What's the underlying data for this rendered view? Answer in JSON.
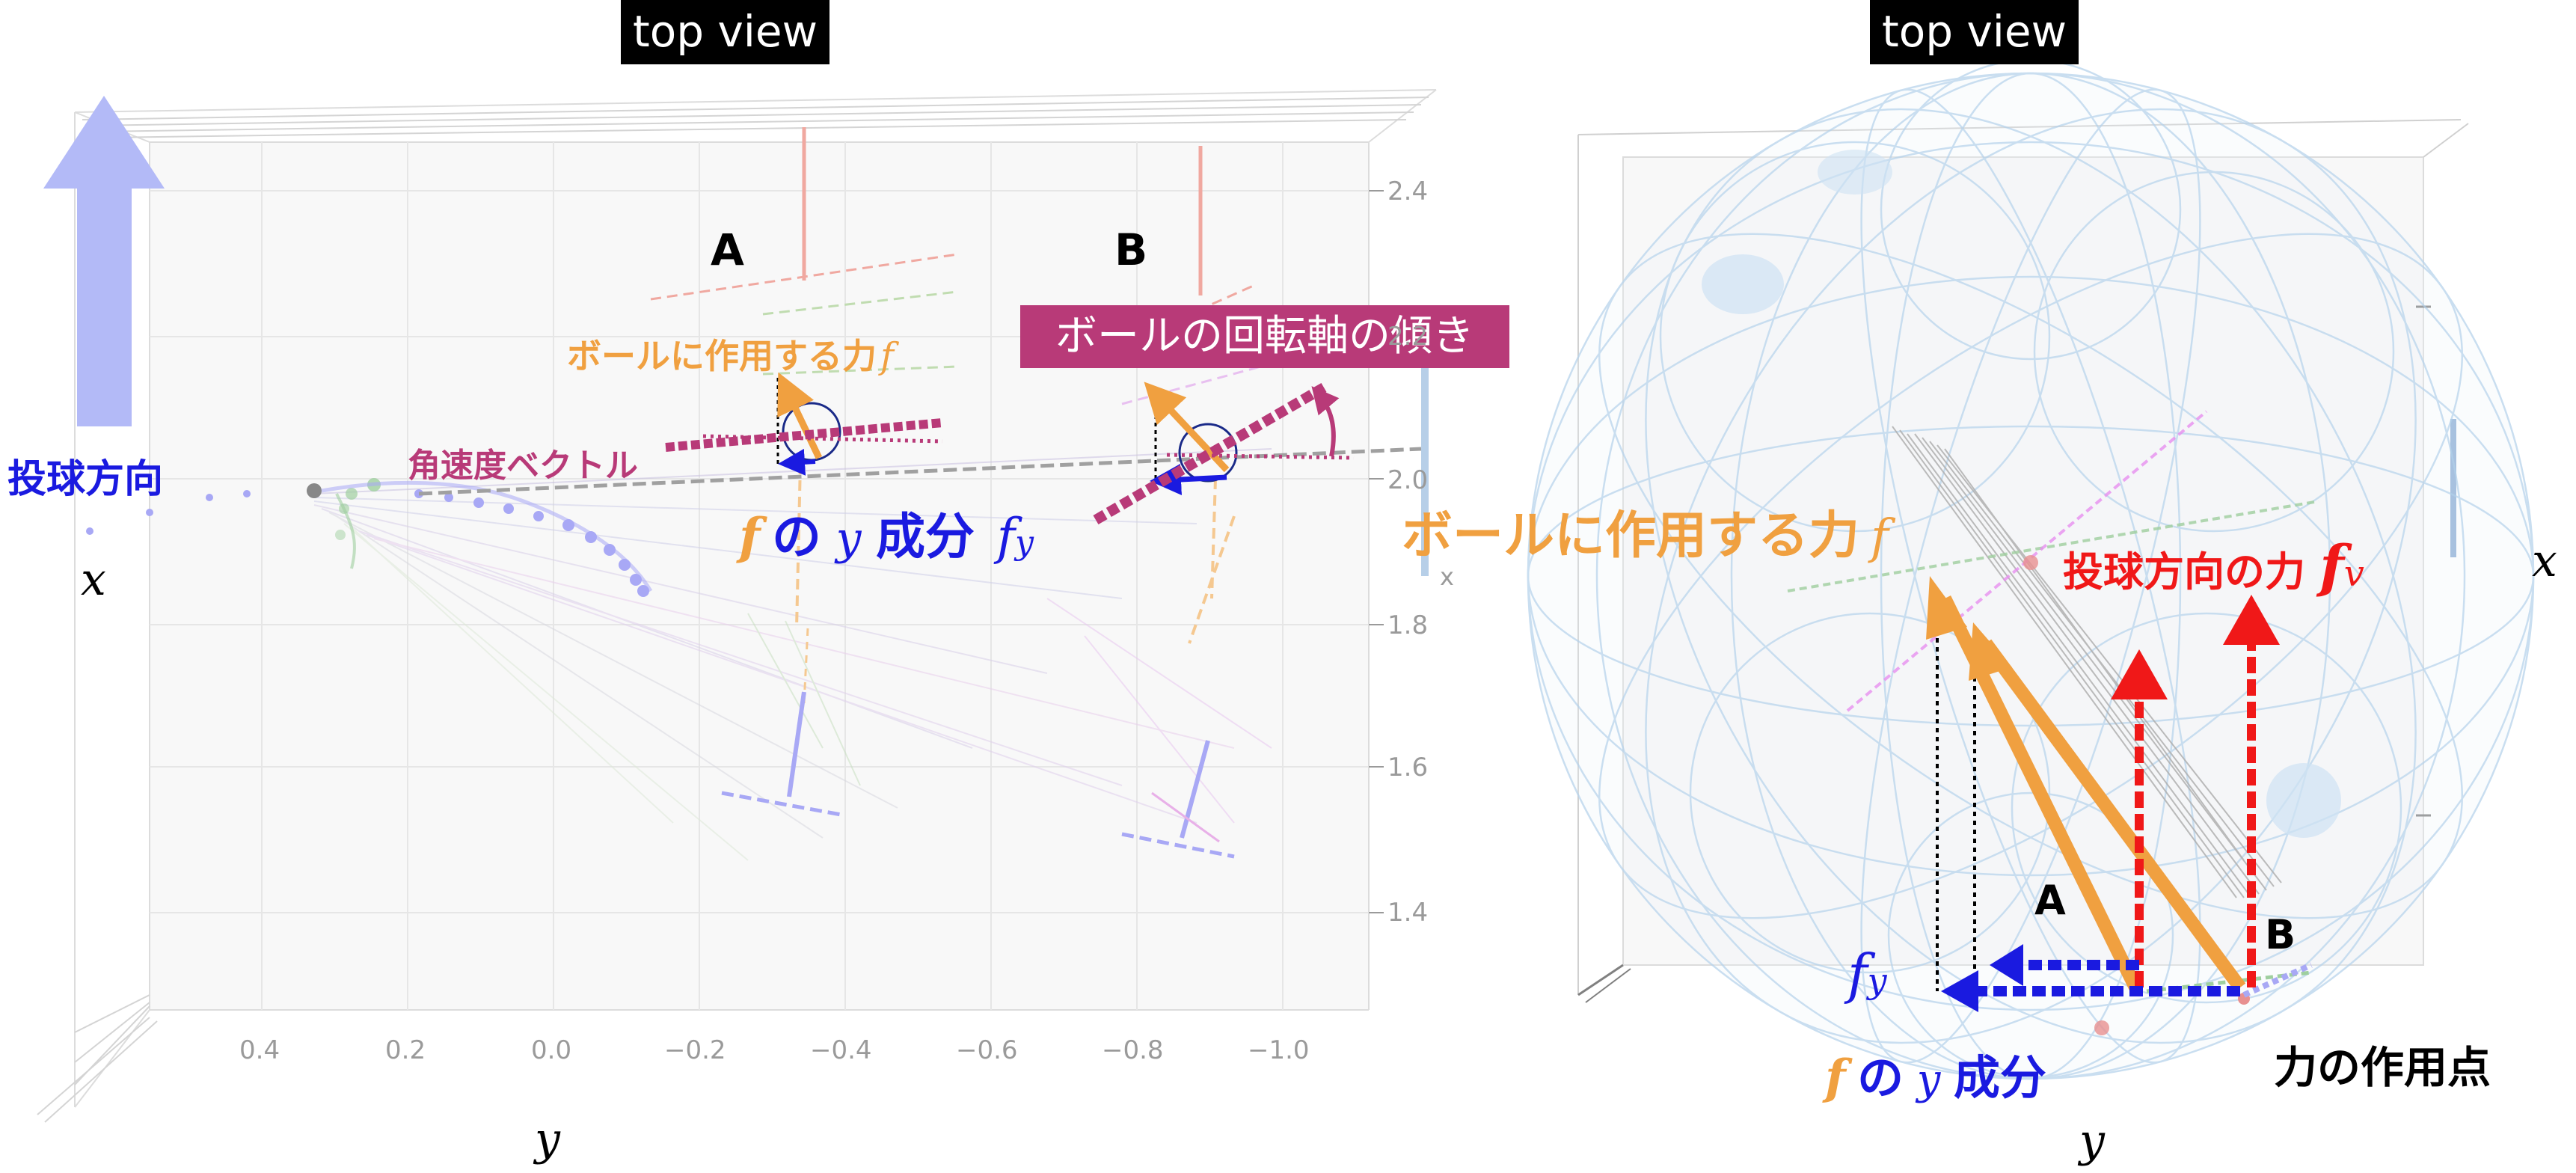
{
  "left_panel": {
    "title": "top view",
    "direction_label": "投球方向",
    "label_a": "A",
    "label_b": "B",
    "force_label": "ボールに作用する力",
    "force_symbol": "f",
    "tilt_label": "ボールの回転軸の傾き",
    "angular_velocity_label": "角速度ベクトル",
    "component_prefix": "f",
    "component_middle": "の",
    "component_var": "y",
    "component_suffix": "成分",
    "component_symbol": "f",
    "component_subscript": "y",
    "axis_x": "x",
    "axis_y": "y",
    "axis_x_small": "x",
    "y_ticks": [
      "0.4",
      "0.2",
      "0.0",
      "−0.2",
      "−0.4",
      "−0.6",
      "−0.8",
      "−1.0"
    ],
    "x_ticks": [
      "2.4",
      "2.2",
      "2.0",
      "1.8",
      "1.6",
      "1.4"
    ]
  },
  "right_panel": {
    "title": "top view",
    "force_label": "ボールに作用する力",
    "force_symbol": "f",
    "pitch_force_label": "投球方向の力",
    "pitch_force_symbol": "f",
    "pitch_force_subscript": "v",
    "label_a": "A",
    "label_b": "B",
    "fy_symbol": "f",
    "fy_subscript": "y",
    "component_prefix": "f",
    "component_middle": "の",
    "component_var": "y",
    "component_suffix": "成分",
    "action_point_label": "力の作用点",
    "axis_x": "x",
    "axis_y": "y"
  },
  "colors": {
    "orange": "#f0a040",
    "blue": "#1a1ae0",
    "magenta": "#b83a78",
    "red": "#f01818",
    "sphere": "#b8d4ec",
    "direction_arrow": "#b3baf7"
  }
}
